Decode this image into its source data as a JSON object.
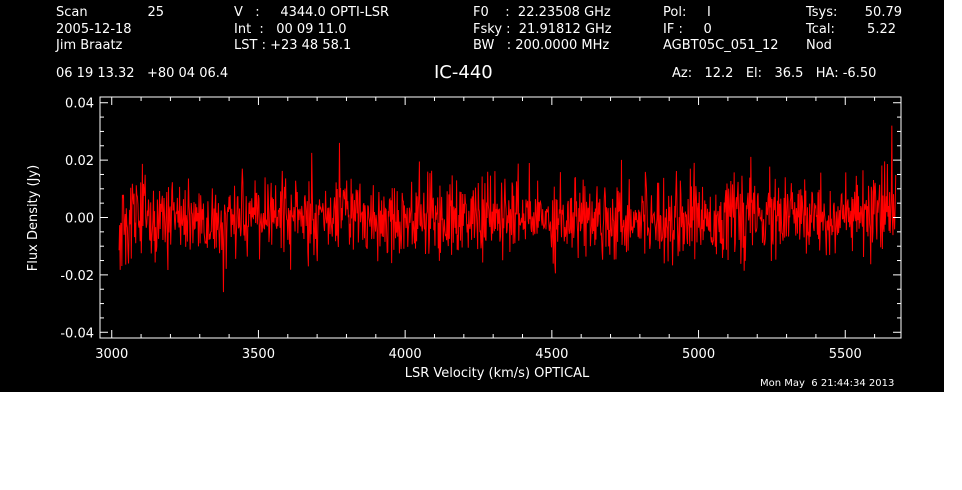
{
  "header": {
    "col1": {
      "row1_label": "Scan",
      "row1_value": "25",
      "row2": "2005-12-18",
      "row3": "Jim Braatz"
    },
    "col2": {
      "row1": "V   :     4344.0 OPTI-LSR",
      "row2": "Int  :   00 09 11.0",
      "row3": "LST : +23 48 58.1"
    },
    "col3": {
      "row1": "F0    :  22.23508 GHz",
      "row2": "Fsky :  21.91812 GHz",
      "row3": "BW   : 200.0000 MHz"
    },
    "col4": {
      "row1": "Pol:     I",
      "row2": "IF :     0",
      "row3": "AGBT05C_051_12"
    },
    "col5": {
      "row1_label": "Tsys:",
      "row1_value": "50.79",
      "row2_label": "Tcal:",
      "row2_value": "5.22",
      "row3": "Nod"
    },
    "coords": "06 19 13.32   +80 04 06.4",
    "azel": "Az:   12.2   El:   36.5   HA: -6.50"
  },
  "timestamp": "Mon May  6 21:44:34 2013",
  "chart_data": {
    "type": "line",
    "title": "IC-440",
    "xlabel": "LSR Velocity (km/s) OPTICAL",
    "ylabel": "Flux Density (Jy)",
    "xlim": [
      2960,
      5690
    ],
    "ylim": [
      -0.042,
      0.042
    ],
    "x_ticks": [
      3000,
      3500,
      4000,
      4500,
      5000,
      5500
    ],
    "x_tick_labels": [
      "3000",
      "3500",
      "4000",
      "4500",
      "5000",
      "5500"
    ],
    "y_ticks": [
      -0.04,
      -0.02,
      0.0,
      0.02,
      0.04
    ],
    "y_tick_labels": [
      "-0.04",
      "-0.02",
      "0.00",
      "0.02",
      "0.04"
    ],
    "grid": false,
    "line_color": "#ff0000",
    "series": [
      {
        "x_start": 3025,
        "x_end": 5672,
        "noise_rms_estimate": 0.007,
        "y_min_observed": -0.026,
        "y_max_observed": 0.032,
        "approx_x_of_max": 5660,
        "approx_x_of_min": 3380
      }
    ]
  }
}
